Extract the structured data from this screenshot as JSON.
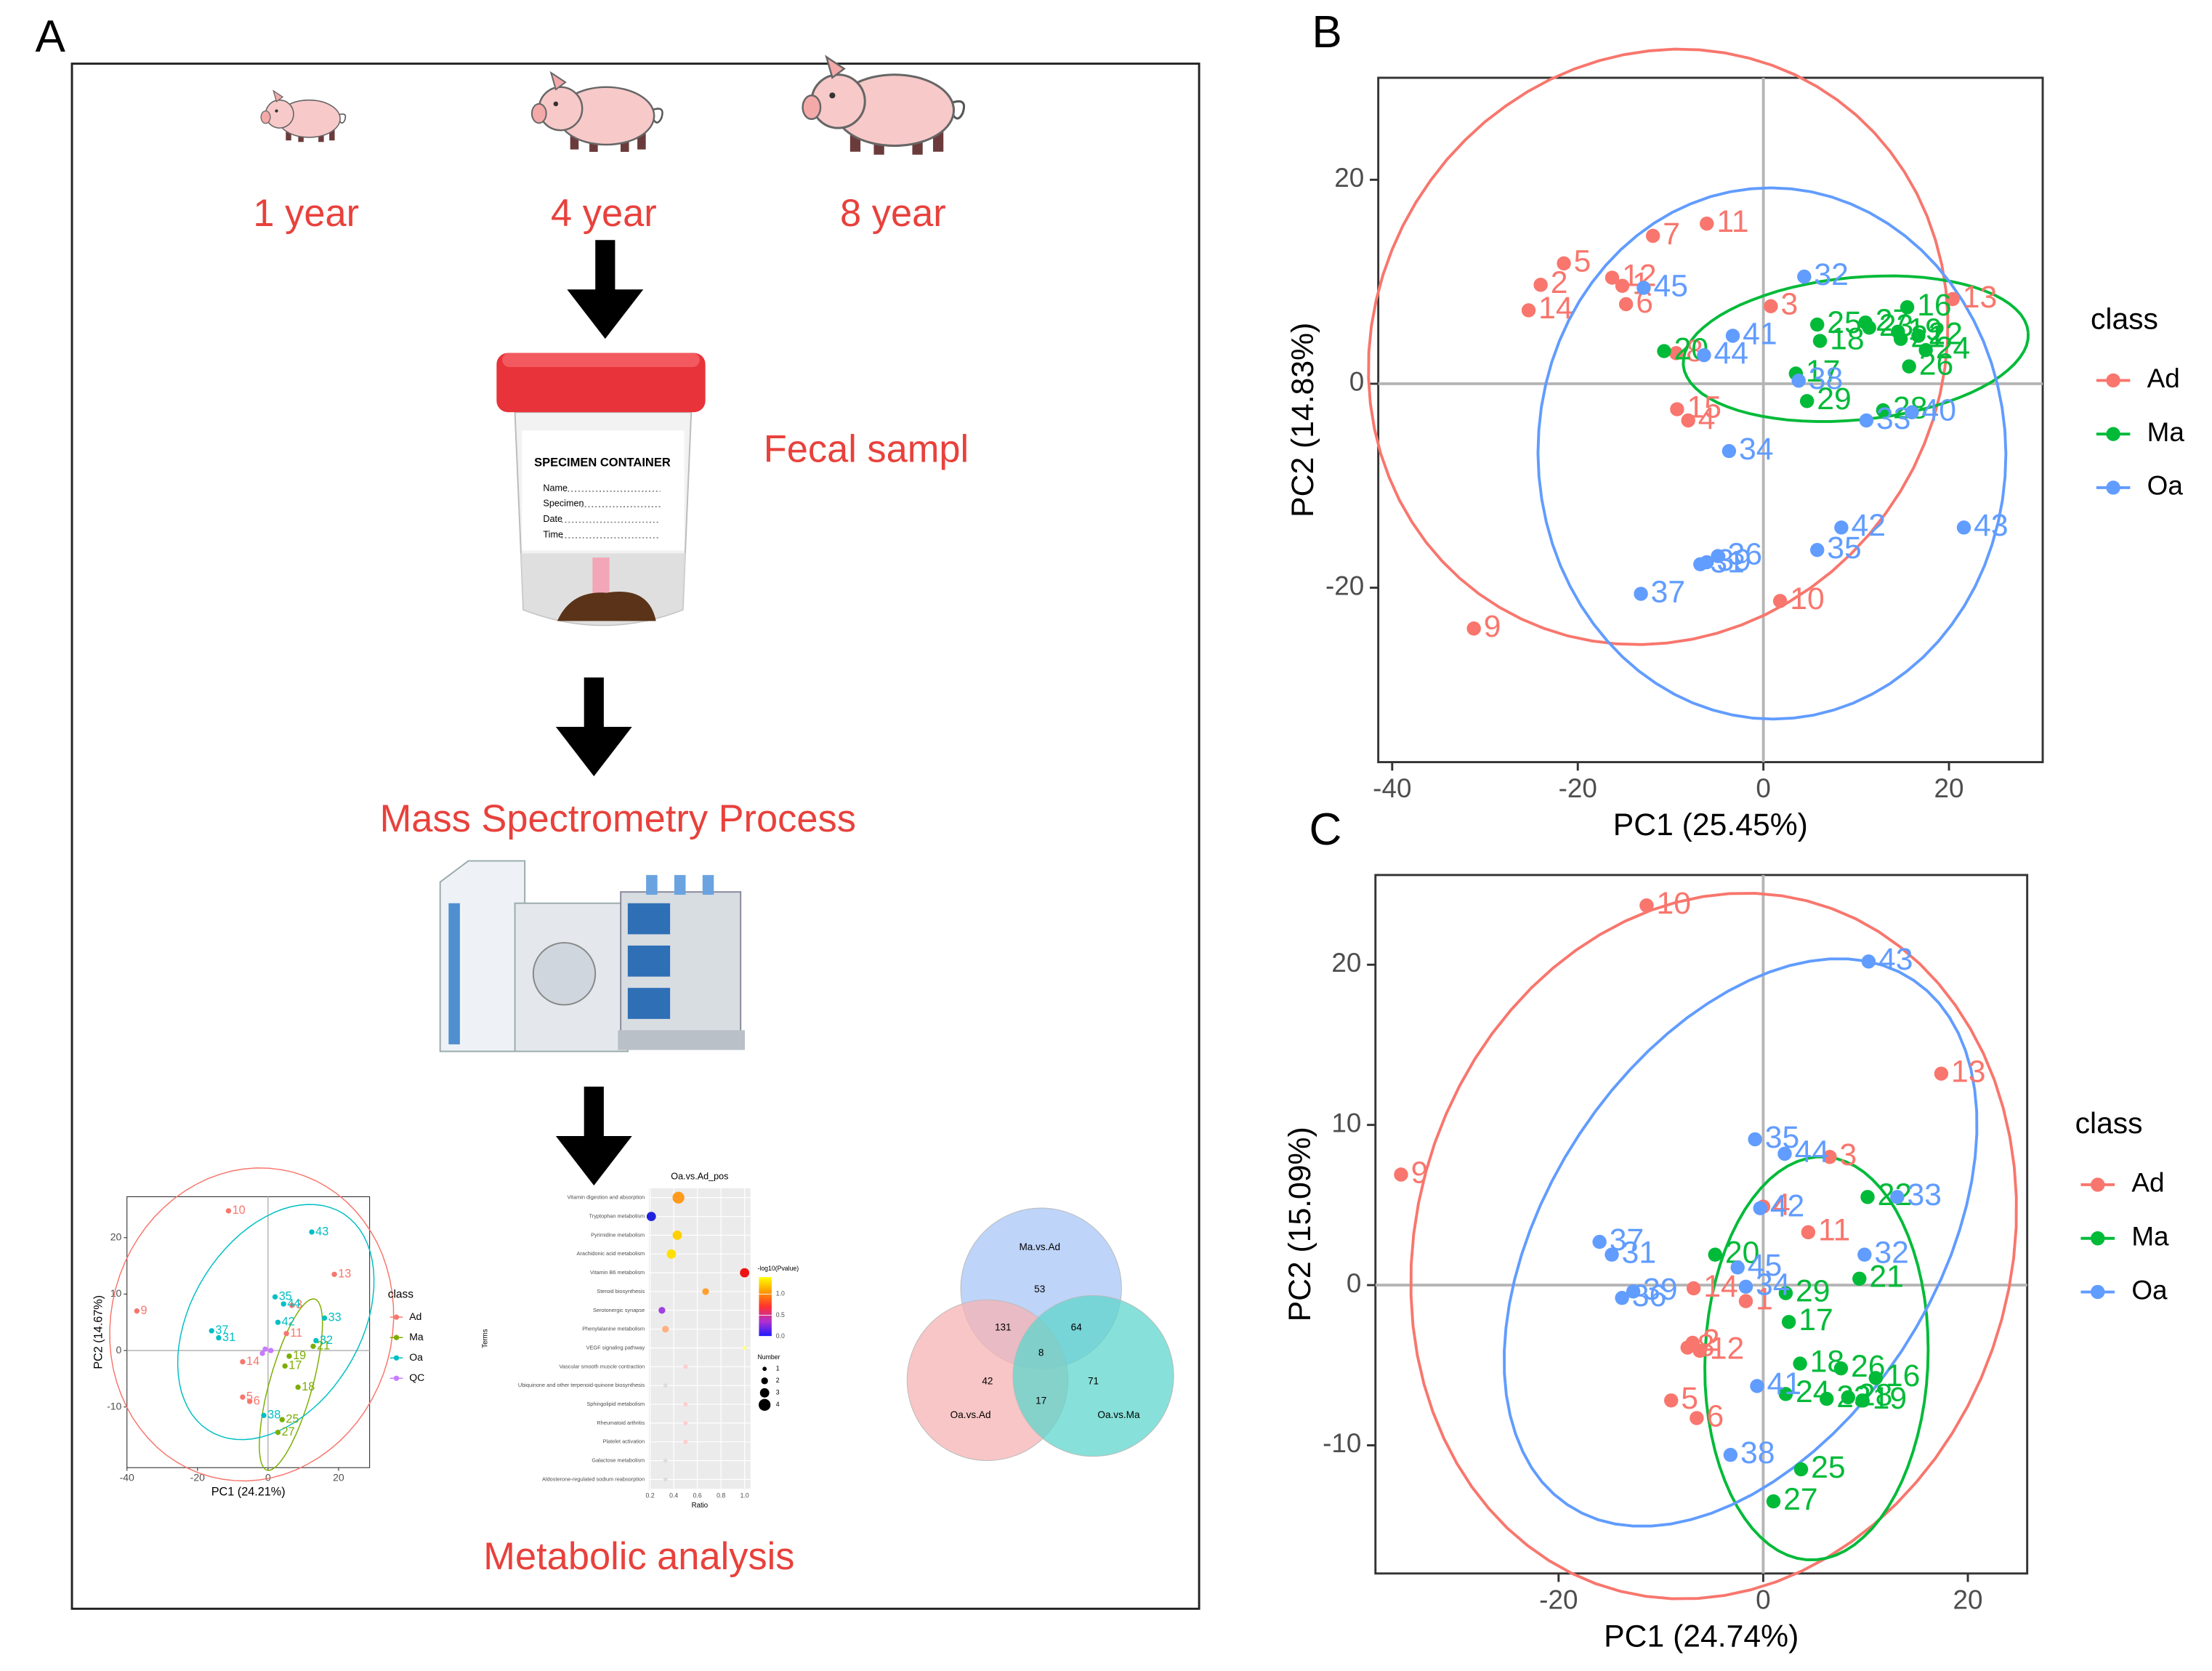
{
  "diagram": {
    "panel_label": "A",
    "ages": [
      "1 year",
      "4 year",
      "8 year"
    ],
    "steps": [
      "Fecal sampl",
      "Mass Spectrometry Process",
      "Metabolic analysis"
    ],
    "container": {
      "title": "SPECIMEN CONTAINER",
      "fields": [
        "Name",
        "Specimen",
        "Date",
        "Time"
      ]
    }
  },
  "chart_data": [
    {
      "type": "scatter",
      "panel_label": "B",
      "x_label": "PC1 (25.45%)",
      "y_label": "PC2 (14.83%)",
      "xlim": [
        -41.5,
        30.1
      ],
      "ylim": [
        -37.1,
        30
      ],
      "xticks": [
        -40,
        -20,
        0,
        20
      ],
      "yticks": [
        -20,
        0,
        20
      ],
      "legend_title": "class",
      "legend": "right",
      "series": [
        {
          "name": "Ad",
          "color": "#F8766D",
          "labels": [
            "13",
            "11",
            "7",
            "5",
            "2",
            "14",
            "12",
            "1",
            "6",
            "3",
            "8",
            "15",
            "4",
            "10",
            "9"
          ],
          "x": [
            20.4,
            -6.1,
            -11.9,
            -21.5,
            -24.0,
            -25.3,
            -16.3,
            -15.2,
            -14.8,
            0.8,
            -9.4,
            -9.3,
            -8.1,
            1.8,
            -31.2
          ],
          "values": [
            8.3,
            15.7,
            14.5,
            11.8,
            9.7,
            7.2,
            10.4,
            9.6,
            7.8,
            7.6,
            3.0,
            -2.5,
            -3.6,
            -21.3,
            -24.0
          ]
        },
        {
          "name": "Ma",
          "color": "#00BA38",
          "labels": [
            "16",
            "25",
            "23",
            "18",
            "19",
            "22",
            "24",
            "26",
            "21",
            "20",
            "17",
            "29",
            "28",
            "27"
          ],
          "x": [
            15.5,
            5.8,
            11.4,
            6.1,
            14.5,
            16.7,
            17.5,
            15.7,
            14.8,
            -10.7,
            3.5,
            4.7,
            12.9,
            11.0
          ],
          "values": [
            7.5,
            5.8,
            5.5,
            4.2,
            5.1,
            4.7,
            3.3,
            1.7,
            4.4,
            3.2,
            1.0,
            -1.7,
            -2.6,
            6.0
          ]
        },
        {
          "name": "Oa",
          "color": "#619CFF",
          "labels": [
            "32",
            "45",
            "41",
            "44",
            "38",
            "33",
            "40",
            "34",
            "42",
            "35",
            "43",
            "36",
            "39",
            "31",
            "37"
          ],
          "x": [
            4.4,
            -12.9,
            -3.3,
            -6.4,
            3.8,
            11.1,
            16.0,
            -3.7,
            8.4,
            5.8,
            21.6,
            -4.9,
            -6.1,
            -6.8,
            -13.2
          ],
          "values": [
            10.5,
            9.4,
            4.7,
            2.8,
            0.3,
            -3.6,
            -2.8,
            -6.6,
            -14.1,
            -16.3,
            -14.1,
            -16.9,
            -17.5,
            -17.7,
            -20.6
          ]
        }
      ]
    },
    {
      "type": "scatter",
      "panel_label": "C",
      "x_label": "PC1 (24.74%)",
      "y_label": "PC2 (15.09%)",
      "xlim": [
        -37.9,
        25.8
      ],
      "ylim": [
        -18.0,
        25.6
      ],
      "xticks": [
        -20,
        0,
        20
      ],
      "yticks": [
        -10,
        0,
        10,
        20
      ],
      "legend_title": "class",
      "legend": "right",
      "series": [
        {
          "name": "Ad",
          "color": "#F8766D",
          "labels": [
            "10",
            "13",
            "9",
            "3",
            "4",
            "11",
            "14",
            "1",
            "2",
            "8",
            "12",
            "5",
            "6"
          ],
          "x": [
            -11.4,
            17.4,
            -35.4,
            6.5,
            0,
            4.4,
            -6.8,
            -1.7,
            -6.9,
            -7.4,
            -6.2,
            -9.0,
            -6.5
          ],
          "values": [
            23.7,
            13.2,
            6.9,
            8.0,
            4.9,
            3.3,
            -0.2,
            -1.0,
            -3.6,
            -3.9,
            -4.1,
            -7.2,
            -8.3
          ]
        },
        {
          "name": "Ma",
          "color": "#00BA38",
          "labels": [
            "20",
            "29",
            "17",
            "21",
            "22",
            "18",
            "26",
            "16",
            "24",
            "28",
            "19",
            "23",
            "25",
            "27"
          ],
          "x": [
            -4.7,
            2.2,
            2.5,
            9.4,
            10.2,
            3.6,
            7.6,
            11.0,
            2.2,
            8.3,
            9.7,
            6.2,
            3.7,
            1.0
          ],
          "values": [
            1.9,
            -0.5,
            -2.3,
            0.4,
            5.5,
            -4.9,
            -5.2,
            -5.8,
            -6.8,
            -7.0,
            -7.2,
            -7.1,
            -11.5,
            -13.5
          ]
        },
        {
          "name": "Oa",
          "color": "#619CFF",
          "labels": [
            "43",
            "35",
            "44",
            "33",
            "42",
            "32",
            "37",
            "31",
            "39",
            "36",
            "45",
            "34",
            "41",
            "38"
          ],
          "x": [
            10.3,
            -0.8,
            2.1,
            13.1,
            -0.3,
            9.9,
            -16.0,
            -14.8,
            -12.7,
            -13.8,
            -2.5,
            -1.7,
            -0.6,
            -3.2
          ],
          "values": [
            20.2,
            9.1,
            8.2,
            5.5,
            4.8,
            1.9,
            2.7,
            1.9,
            -0.4,
            -0.8,
            1.1,
            -0.1,
            -6.3,
            -10.6
          ]
        }
      ]
    },
    {
      "type": "scatter",
      "x_label": "PC1 (24.21%)",
      "y_label": "PC2 (14.67%)",
      "xlim": [
        -40,
        28.8
      ],
      "ylim": [
        -20.75,
        27.25
      ],
      "xticks": [
        -40,
        -20,
        0,
        20
      ],
      "yticks": [
        -10,
        0,
        10,
        20
      ],
      "legend_title": "class",
      "legend": "right",
      "series": [
        {
          "name": "Ad",
          "color": "#F8766D",
          "labels": [
            "10",
            "13",
            "9",
            "11",
            "3",
            "14",
            "5",
            "6"
          ],
          "x": [
            -11.2,
            18.8,
            -37.2,
            5.2,
            6.8,
            -7.2,
            -7.2,
            -5.2
          ],
          "values": [
            24.75,
            13.5,
            7,
            3,
            8,
            -2,
            -8.25,
            -9
          ]
        },
        {
          "name": "Ma",
          "color": "#7CAE00",
          "labels": [
            "25",
            "27",
            "21",
            "17",
            "19",
            "18"
          ],
          "x": [
            4,
            2.8,
            12.8,
            4.8,
            6,
            8.5
          ],
          "values": [
            -12.25,
            -14.5,
            0.75,
            -2.75,
            -1,
            -6.5
          ]
        },
        {
          "name": "Oa",
          "color": "#00BFC4",
          "labels": [
            "43",
            "35",
            "44",
            "42",
            "32",
            "37",
            "31",
            "38",
            "33"
          ],
          "x": [
            12.4,
            2,
            4.4,
            2.8,
            13.6,
            -16,
            -14,
            -1.2,
            16
          ],
          "values": [
            21,
            9.5,
            8.25,
            5,
            1.75,
            3.5,
            2.25,
            -11.5,
            5.75
          ]
        },
        {
          "name": "QC",
          "color": "#C77CFF",
          "x": [
            -0.8,
            0.8,
            -1.6
          ],
          "values": [
            0.25,
            0,
            -0.5
          ]
        }
      ]
    },
    {
      "type": "bubble",
      "title": "Oa.vs.Ad_pos",
      "x_label": "Ratio",
      "y_label": "Terms",
      "categories": [
        "Vitamin digestion and absorption",
        "Tryptophan metabolism",
        "Pyrimidine metabolism",
        "Arachidonic acid metabolism",
        "Vitamin B6 metabolism",
        "Steroid biosynthesis",
        "Serotonergic synapse",
        "Phenylalanine metabolism",
        "VEGF signaling pathway",
        "Vascular smooth muscle contraction",
        "Ubiquinone and other terpenoid-quinone biosynthesis",
        "Sphingolipid metabolism",
        "Rheumatoid arthritis",
        "Platelet activation",
        "Galactose metabolism",
        "Aldosterone-regulated sodium reabsorption"
      ],
      "values": [
        0.44,
        0.21,
        0.43,
        0.38,
        1.0,
        0.67,
        0.3,
        0.33,
        1.0,
        0.5,
        0.33,
        0.5,
        0.5,
        0.5,
        0.33,
        0.33
      ],
      "sizes": [
        4,
        3,
        3,
        3,
        3,
        2,
        2,
        2,
        1,
        1,
        1,
        1,
        1,
        1,
        1,
        1
      ],
      "colors": [
        "#ff9a1a",
        "#2222dd",
        "#ffd000",
        "#ffe000",
        "#ee1111",
        "#ffa030",
        "#a040e0",
        "#ffb080",
        "#ffff88",
        "#ffcccc",
        "#dddddd",
        "#ffcccc",
        "#ffcccc",
        "#ffcccc",
        "#dddddd",
        "#dddddd"
      ],
      "xlim": [
        0.19,
        1.05
      ],
      "xticks": [
        0.2,
        0.4,
        0.6,
        0.8,
        {
          "value": 1,
          "label": "1.0"
        }
      ],
      "color_title": "-log10(Pvalue)",
      "color_lim": [
        0,
        1.4
      ],
      "color_ticks": [
        {
          "value": 0,
          "label": "0.0"
        },
        0.5,
        {
          "value": 1,
          "label": "1.0"
        }
      ],
      "color_scale": [
        "#1a1aff",
        "#b030d0",
        "#ff3030",
        "#ff9900",
        "#ffff00"
      ],
      "size_title": "Number",
      "size_ticks": [
        1,
        2,
        3,
        4
      ]
    },
    {
      "type": "venn",
      "sets": [
        {
          "name": "Ma.vs.Ad",
          "color": "#a8c6f7"
        },
        {
          "name": "Oa.vs.Ad",
          "color": "#f6b3b3"
        },
        {
          "name": "Oa.vs.Ma",
          "color": "#5fd6cc"
        }
      ],
      "counts": [
        53,
        42,
        71,
        131,
        64,
        8,
        17
      ]
    }
  ]
}
